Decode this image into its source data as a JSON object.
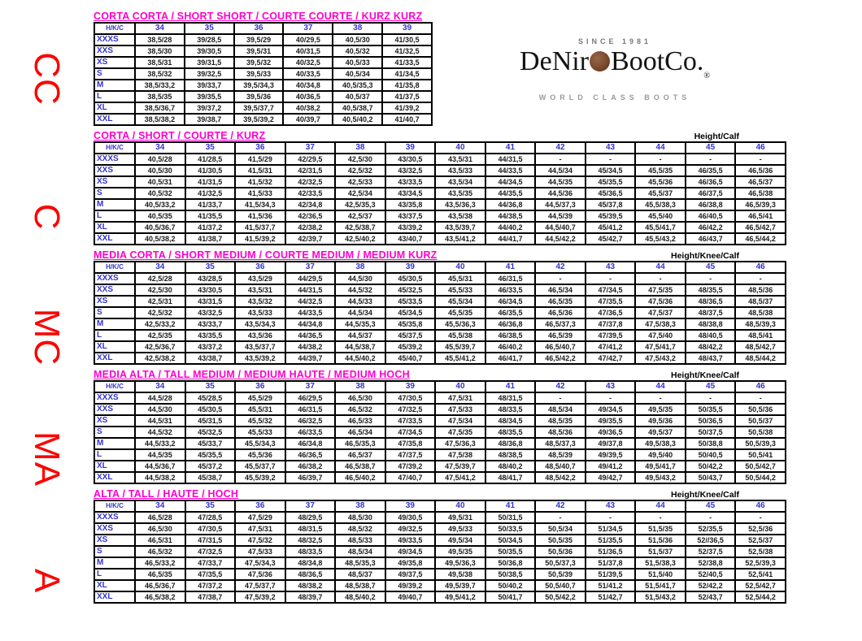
{
  "page": {
    "side_labels": [
      "CC",
      "C",
      "MC",
      "MA",
      "A"
    ],
    "colors": {
      "title_pink": "#ff00cc",
      "header_blue": "#3333cc",
      "side_label_red": "#ff0000",
      "coin_brown": "#7a4a2b"
    }
  },
  "logo": {
    "since": "SINCE 1981",
    "name_pre": "DeNir",
    "name_post": "BootCo.",
    "registered": "®",
    "tagline": "WORLD CLASS BOOTS",
    "coin_icon": "coin-icon"
  },
  "tables": [
    {
      "code": "CC",
      "title": "CORTA CORTA / SHORT SHORT / COURTE COURTE / KURZ KURZ",
      "height_label": "",
      "header": [
        "H/K/C",
        "34",
        "35",
        "36",
        "37",
        "38",
        "39"
      ],
      "rows": [
        {
          "label": "XXXS",
          "values": [
            "38,5/28",
            "39/28,5",
            "39,5/29",
            "40/29,5",
            "40,5/30",
            "41/30,5"
          ]
        },
        {
          "label": "XXS",
          "values": [
            "38,5/30",
            "39/30,5",
            "39,5/31",
            "40/31,5",
            "40,5/32",
            "41/32,5"
          ]
        },
        {
          "label": "XS",
          "values": [
            "38,5/31",
            "39/31,5",
            "39,5/32",
            "40/32,5",
            "40,5/33",
            "41/33,5"
          ]
        },
        {
          "label": "S",
          "values": [
            "38,5/32",
            "39/32,5",
            "39,5/33",
            "40/33,5",
            "40,5/34",
            "41/34,5"
          ]
        },
        {
          "label": "M",
          "values": [
            "38,5/33,2",
            "39/33,7",
            "39,5/34,3",
            "40/34,8",
            "40,5/35,3",
            "41/35,8"
          ]
        },
        {
          "label": "L",
          "values": [
            "38,5/35",
            "39/35,5",
            "39,5/36",
            "40/36,5",
            "40,5/37",
            "41/37,5"
          ]
        },
        {
          "label": "XL",
          "values": [
            "38,5/36,7",
            "39/37,2",
            "39,5/37,7",
            "40/38,2",
            "40,5/38,7",
            "41/39,2"
          ]
        },
        {
          "label": "XXL",
          "values": [
            "38,5/38,2",
            "39/38,7",
            "39,5/39,2",
            "40/39,7",
            "40,5/40,2",
            "41/40,7"
          ]
        }
      ]
    },
    {
      "code": "C",
      "title": "CORTA / SHORT / COURTE / KURZ",
      "height_label": "Height/Calf",
      "header": [
        "H/K/C",
        "34",
        "35",
        "36",
        "37",
        "38",
        "39",
        "40",
        "41",
        "42",
        "43",
        "44",
        "45",
        "46"
      ],
      "rows": [
        {
          "label": "XXXS",
          "values": [
            "40,5/28",
            "41/28,5",
            "41,5/29",
            "42/29,5",
            "42,5/30",
            "43/30,5",
            "43,5/31",
            "44/31,5",
            "-",
            "-",
            "-",
            "-",
            "-"
          ]
        },
        {
          "label": "XXS",
          "values": [
            "40,5/30",
            "41/30,5",
            "41,5/31",
            "42/31,5",
            "42,5/32",
            "43/32,5",
            "43,5/33",
            "44/33,5",
            "44,5/34",
            "45/34,5",
            "45,5/35",
            "46/35,5",
            "46,5/36"
          ]
        },
        {
          "label": "XS",
          "values": [
            "40,5/31",
            "41/31,5",
            "41,5/32",
            "42/32,5",
            "42,5/33",
            "43/33,5",
            "43,5/34",
            "44/34,5",
            "44,5/35",
            "45/35,5",
            "45,5/36",
            "46/36,5",
            "46,5/37"
          ]
        },
        {
          "label": "S",
          "values": [
            "40,5/32",
            "41/32,5",
            "41,5/33",
            "42/33,5",
            "42,5/34",
            "43/34,5",
            "43,5/35",
            "44/35,5",
            "44,5/36",
            "45/36,5",
            "45,5/37",
            "46/37,5",
            "46,5/38"
          ]
        },
        {
          "label": "M",
          "values": [
            "40,5/33,2",
            "41/33,7",
            "41,5/34,3",
            "42/34,8",
            "42,5/35,3",
            "43/35,8",
            "43,5/36,3",
            "44/36,8",
            "44,5/37,3",
            "45/37,8",
            "45,5/38,3",
            "46/38,8",
            "46,5/39,3"
          ]
        },
        {
          "label": "L",
          "values": [
            "40,5/35",
            "41/35,5",
            "41,5/36",
            "42/36,5",
            "42,5/37",
            "43/37,5",
            "43,5/38",
            "44/38,5",
            "44,5/39",
            "45/39,5",
            "45,5/40",
            "46/40,5",
            "46,5/41"
          ]
        },
        {
          "label": "XL",
          "values": [
            "40,5/36,7",
            "41/37,2",
            "41,5/37,7",
            "42/38,2",
            "42,5/38,7",
            "43/39,2",
            "43,5/39,7",
            "44/40,2",
            "44,5/40,7",
            "45/41,2",
            "45,5/41,7",
            "46/42,2",
            "46,5/42,7"
          ]
        },
        {
          "label": "XXL",
          "values": [
            "40,5/38,2",
            "41/38,7",
            "41,5/39,2",
            "42/39,7",
            "42,5/40,2",
            "43/40,7",
            "43,5/41,2",
            "44/41,7",
            "44,5/42,2",
            "45/42,7",
            "45,5/43,2",
            "46/43,7",
            "46,5/44,2"
          ]
        }
      ]
    },
    {
      "code": "MC",
      "title": "MEDIA CORTA / SHORT MEDIUM / COURTE MEDIUM / MEDIUM KURZ",
      "height_label": "Height/Knee/Calf",
      "header": [
        "H/K/C",
        "34",
        "35",
        "36",
        "37",
        "38",
        "39",
        "40",
        "41",
        "42",
        "43",
        "44",
        "45",
        "46"
      ],
      "rows": [
        {
          "label": "XXXS",
          "values": [
            "42,5/28",
            "43/28,5",
            "43,5/29",
            "44/29,5",
            "44,5/30",
            "45/30,5",
            "45,5/31",
            "46/31,5",
            "-",
            "-",
            "-",
            "-",
            "-"
          ]
        },
        {
          "label": "XXS",
          "values": [
            "42,5/30",
            "43/30,5",
            "43,5/31",
            "44/31,5",
            "44,5/32",
            "45/32,5",
            "45,5/33",
            "46/33,5",
            "46,5/34",
            "47/34,5",
            "47,5/35",
            "48/35,5",
            "48,5/36"
          ]
        },
        {
          "label": "XS",
          "values": [
            "42,5/31",
            "43/31,5",
            "43,5/32",
            "44/32,5",
            "44,5/33",
            "45/33,5",
            "45,5/34",
            "46/34,5",
            "46,5/35",
            "47/35,5",
            "47,5/36",
            "48/36,5",
            "48,5/37"
          ]
        },
        {
          "label": "S",
          "values": [
            "42,5/32",
            "43/32,5",
            "43,5/33",
            "44/33,5",
            "44,5/34",
            "45/34,5",
            "45,5/35",
            "46/35,5",
            "46,5/36",
            "47/36,5",
            "47,5/37",
            "48/37,5",
            "48,5/38"
          ]
        },
        {
          "label": "M",
          "values": [
            "42,5/33,2",
            "43/33,7",
            "43,5/34,3",
            "44/34,8",
            "44,5/35,3",
            "45/35,8",
            "45,5/36,3",
            "46/36,8",
            "46,5/37,3",
            "47/37,8",
            "47,5/38,3",
            "48/38,8",
            "48,5/39,3"
          ]
        },
        {
          "label": "L",
          "values": [
            "42,5/35",
            "43/35,5",
            "43,5/36",
            "44/36,5",
            "44,5/37",
            "45/37,5",
            "45,5/38",
            "46/38,5",
            "46,5/39",
            "47/39,5",
            "47,5/40",
            "48/40,5",
            "48,5/41"
          ]
        },
        {
          "label": "XL",
          "values": [
            "42,5/36,7",
            "43/37,2",
            "43,5/37,7",
            "44/38,2",
            "44,5/38,7",
            "45/39,2",
            "45,5/39,7",
            "46/40,2",
            "46,5/40,7",
            "47/41,2",
            "47,5/41,7",
            "48/42,2",
            "48,5/42,7"
          ]
        },
        {
          "label": "XXL",
          "values": [
            "42,5/38,2",
            "43/38,7",
            "43,5/39,2",
            "44/39,7",
            "44,5/40,2",
            "45/40,7",
            "45,5/41,2",
            "46/41,7",
            "46,5/42,2",
            "47/42,7",
            "47,5/43,2",
            "48/43,7",
            "48,5/44,2"
          ]
        }
      ]
    },
    {
      "code": "MA",
      "title": "MEDIA ALTA / TALL MEDIUM / MEDIUM HAUTE / MEDIUM HOCH",
      "height_label": "Height/Knee/Calf",
      "header": [
        "H/K/C",
        "34",
        "35",
        "36",
        "37",
        "38",
        "39",
        "40",
        "41",
        "42",
        "43",
        "44",
        "45",
        "46"
      ],
      "rows": [
        {
          "label": "XXXS",
          "values": [
            "44,5/28",
            "45/28,5",
            "45,5/29",
            "46/29,5",
            "46,5/30",
            "47/30,5",
            "47,5/31",
            "48/31,5",
            "-",
            "-",
            "-",
            "-",
            "-"
          ]
        },
        {
          "label": "XXS",
          "values": [
            "44,5/30",
            "45/30,5",
            "45,5/31",
            "46/31,5",
            "46,5/32",
            "47/32,5",
            "47,5/33",
            "48/33,5",
            "48,5/34",
            "49/34,5",
            "49,5/35",
            "50/35,5",
            "50,5/36"
          ]
        },
        {
          "label": "XS",
          "values": [
            "44,5/31",
            "45/31,5",
            "45,5/32",
            "46/32,5",
            "46,5/33",
            "47/33,5",
            "47,5/34",
            "48/34,5",
            "48,5/35",
            "49/35,5",
            "49,5/36",
            "50/36,5",
            "50,5/37"
          ]
        },
        {
          "label": "S",
          "values": [
            "44,5/32",
            "45/32,5",
            "45,5/33",
            "46/33,5",
            "46,5/34",
            "47/34,5",
            "47,5/35",
            "48/35,5",
            "48,5/36",
            "49/36,5",
            "49,5/37",
            "50/37,5",
            "50,5/38"
          ]
        },
        {
          "label": "M",
          "values": [
            "44,5/33,2",
            "45/33,7",
            "45,5/34,3",
            "46/34,8",
            "46,5/35,3",
            "47/35,8",
            "47,5/36,3",
            "48/36,8",
            "48,5/37,3",
            "49/37,8",
            "49,5/38,3",
            "50/38,8",
            "50,5/39,3"
          ]
        },
        {
          "label": "L",
          "values": [
            "44,5/35",
            "45/35,5",
            "45,5/36",
            "46/36,5",
            "46,5/37",
            "47/37,5",
            "47,5/38",
            "48/38,5",
            "48,5/39",
            "49/39,5",
            "49,5/40",
            "50/40,5",
            "50,5/41"
          ]
        },
        {
          "label": "XL",
          "values": [
            "44,5/36,7",
            "45/37,2",
            "45,5/37,7",
            "46/38,2",
            "46,5/38,7",
            "47/39,2",
            "47,5/39,7",
            "48/40,2",
            "48,5/40,7",
            "49/41,2",
            "49,5/41,7",
            "50/42,2",
            "50,5/42,7"
          ]
        },
        {
          "label": "XXL",
          "values": [
            "44,5/38,2",
            "45/38,7",
            "45,5/39,2",
            "46/39,7",
            "46,5/40,2",
            "47/40,7",
            "47,5/41,2",
            "48/41,7",
            "48,5/42,2",
            "49/42,7",
            "49,5/43,2",
            "50/43,7",
            "50,5/44,2"
          ]
        }
      ]
    },
    {
      "code": "A",
      "title": "ALTA / TALL / HAUTE / HOCH",
      "height_label": "Height/Knee/Calf",
      "header": [
        "H/K/C",
        "34",
        "35",
        "36",
        "37",
        "38",
        "39",
        "40",
        "41",
        "42",
        "43",
        "44",
        "45",
        "46"
      ],
      "rows": [
        {
          "label": "XXXS",
          "values": [
            "46,5/28",
            "47/28,5",
            "47,5/29",
            "48/29,5",
            "48,5/30",
            "49/30,5",
            "49,5/31",
            "50/31,5",
            "-",
            "-",
            "-",
            "-",
            "-"
          ]
        },
        {
          "label": "XXS",
          "values": [
            "46,5/30",
            "47/30,5",
            "47,5/31",
            "48/31,5",
            "48,5/32",
            "49/32,5",
            "49,5/33",
            "50/33,5",
            "50,5/34",
            "51/34,5",
            "51,5/35",
            "52/35,5",
            "52,5/36"
          ]
        },
        {
          "label": "XS",
          "values": [
            "46,5/31",
            "47/31,5",
            "47,5/32",
            "48/32,5",
            "48,5/33",
            "49/33,5",
            "49,5/34",
            "50/34,5",
            "50,5/35",
            "51/35,5",
            "51,5/36",
            "52//36,5",
            "52,5/37"
          ]
        },
        {
          "label": "S",
          "values": [
            "46,5/32",
            "47/32,5",
            "47,5/33",
            "48/33,5",
            "48,5/34",
            "49/34,5",
            "49,5/35",
            "50/35,5",
            "50,5/36",
            "51/36,5",
            "51,5/37",
            "52/37,5",
            "52,5/38"
          ]
        },
        {
          "label": "M",
          "values": [
            "46,5/33,2",
            "47/33,7",
            "47,5/34,3",
            "48/34,8",
            "48,5/35,3",
            "49/35,8",
            "49,5/36,3",
            "50/36,8",
            "50,5/37,3",
            "51/37,8",
            "51,5/38,3",
            "52/38,8",
            "52,5/39,3"
          ]
        },
        {
          "label": "L",
          "values": [
            "46,5/35",
            "47/35,5",
            "47,5/36",
            "48/36,5",
            "48,5/37",
            "49/37,5",
            "49,5/38",
            "50/38,5",
            "50,5/39",
            "51/39,5",
            "51,5/40",
            "52/40,5",
            "52,5/41"
          ]
        },
        {
          "label": "XL",
          "values": [
            "46,5/36,7",
            "47/37,2",
            "47,5/37,7",
            "48/38,2",
            "48,5/38,7",
            "49/39,2",
            "49,5/39,7",
            "50/40,2",
            "50,5/40,7",
            "51/41,2",
            "51,5/41,7",
            "52/42,2",
            "52,5/42,7"
          ]
        },
        {
          "label": "XXL",
          "values": [
            "46,5/38,2",
            "47/38,7",
            "47,5/39,2",
            "48/39,7",
            "48,5/40,2",
            "49/40,7",
            "49,5/41,2",
            "50/41,7",
            "50,5/42,2",
            "51/42,7",
            "51,5/43,2",
            "52/43,7",
            "52,5/44,2"
          ]
        }
      ]
    }
  ]
}
